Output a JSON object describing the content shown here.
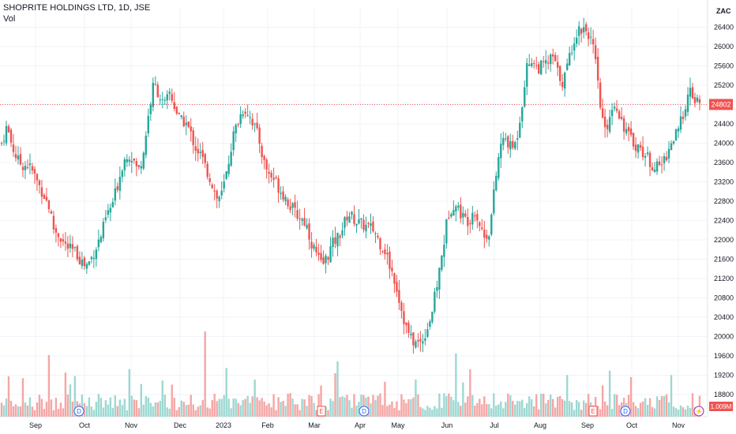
{
  "header": {
    "title": "SHOPRITE HOLDINGS LTD, 1D, JSE",
    "volume_label": "Vol"
  },
  "currency": "ZAC",
  "last_price_label": "24802",
  "volume_value_label": "1.009M",
  "colors": {
    "up": "#26a69a",
    "down": "#ef5350",
    "up_vol": "#9dd8d2",
    "down_vol": "#f5a6a4",
    "grid": "#f0f3fa",
    "last_line": "#ef5350",
    "dividend": "#2962ff",
    "earnings": "#ef5350"
  },
  "chart_data": {
    "type": "candlestick",
    "y_axis": {
      "min": 18800,
      "max": 26800,
      "ticks": [
        18800,
        19200,
        19600,
        20000,
        20400,
        20800,
        21200,
        21600,
        22000,
        22400,
        22800,
        23200,
        23600,
        24000,
        24400,
        24800,
        25200,
        25600,
        26000,
        26400
      ]
    },
    "x_axis": {
      "labels": [
        "Sep",
        "Oct",
        "Nov",
        "Dec",
        "2023",
        "Feb",
        "Mar",
        "Apr",
        "May",
        "Jun",
        "Jul",
        "Aug",
        "Sep",
        "Oct",
        "Nov"
      ]
    },
    "last_price": 24802,
    "approx_close_path": [
      [
        0,
        24000
      ],
      [
        6,
        24350
      ],
      [
        12,
        23950
      ],
      [
        18,
        23650
      ],
      [
        24,
        23550
      ],
      [
        30,
        23550
      ],
      [
        36,
        23400
      ],
      [
        42,
        23150
      ],
      [
        48,
        22950
      ],
      [
        54,
        22700
      ],
      [
        60,
        22200
      ],
      [
        66,
        22100
      ],
      [
        72,
        21900
      ],
      [
        78,
        21800
      ],
      [
        84,
        21750
      ],
      [
        90,
        21600
      ],
      [
        96,
        21450
      ],
      [
        102,
        21600
      ],
      [
        108,
        21850
      ],
      [
        114,
        22100
      ],
      [
        120,
        22500
      ],
      [
        126,
        22700
      ],
      [
        132,
        23100
      ],
      [
        138,
        23550
      ],
      [
        144,
        23800
      ],
      [
        150,
        23700
      ],
      [
        156,
        23400
      ],
      [
        162,
        23800
      ],
      [
        168,
        24600
      ],
      [
        174,
        25250
      ],
      [
        180,
        25000
      ],
      [
        186,
        24750
      ],
      [
        192,
        25050
      ],
      [
        198,
        24750
      ],
      [
        204,
        24450
      ],
      [
        210,
        24450
      ],
      [
        216,
        24200
      ],
      [
        222,
        23900
      ],
      [
        228,
        23750
      ],
      [
        234,
        23450
      ],
      [
        240,
        23200
      ],
      [
        246,
        22850
      ],
      [
        252,
        22950
      ],
      [
        258,
        23450
      ],
      [
        264,
        24100
      ],
      [
        270,
        24450
      ],
      [
        276,
        24700
      ],
      [
        282,
        24650
      ],
      [
        288,
        24400
      ],
      [
        294,
        24100
      ],
      [
        300,
        23600
      ],
      [
        306,
        23350
      ],
      [
        312,
        23250
      ],
      [
        318,
        23050
      ],
      [
        324,
        22900
      ],
      [
        330,
        22700
      ],
      [
        336,
        22550
      ],
      [
        342,
        22450
      ],
      [
        348,
        22350
      ],
      [
        354,
        21950
      ],
      [
        360,
        21700
      ],
      [
        366,
        21450
      ],
      [
        372,
        21650
      ],
      [
        378,
        21900
      ],
      [
        384,
        22050
      ],
      [
        390,
        22250
      ],
      [
        396,
        22550
      ],
      [
        402,
        22450
      ],
      [
        408,
        22350
      ],
      [
        414,
        22300
      ],
      [
        420,
        22250
      ],
      [
        426,
        22200
      ],
      [
        432,
        21950
      ],
      [
        438,
        21800
      ],
      [
        444,
        21450
      ],
      [
        450,
        21150
      ],
      [
        456,
        20650
      ],
      [
        462,
        20200
      ],
      [
        468,
        19950
      ],
      [
        474,
        19850
      ],
      [
        480,
        19900
      ],
      [
        486,
        20150
      ],
      [
        492,
        20500
      ],
      [
        498,
        21100
      ],
      [
        504,
        21750
      ],
      [
        510,
        22500
      ],
      [
        516,
        22750
      ],
      [
        522,
        22650
      ],
      [
        528,
        22450
      ],
      [
        534,
        22400
      ],
      [
        540,
        22650
      ],
      [
        546,
        22350
      ],
      [
        552,
        22050
      ],
      [
        558,
        22200
      ],
      [
        564,
        23150
      ],
      [
        570,
        23950
      ],
      [
        576,
        24100
      ],
      [
        582,
        23900
      ],
      [
        588,
        24000
      ],
      [
        594,
        24700
      ],
      [
        600,
        25550
      ],
      [
        606,
        25750
      ],
      [
        612,
        25550
      ],
      [
        618,
        25600
      ],
      [
        624,
        25650
      ],
      [
        630,
        25800
      ],
      [
        636,
        25450
      ],
      [
        642,
        25250
      ],
      [
        648,
        25700
      ],
      [
        654,
        26150
      ],
      [
        660,
        26350
      ],
      [
        666,
        26400
      ],
      [
        672,
        26250
      ],
      [
        678,
        25800
      ],
      [
        684,
        24800
      ],
      [
        690,
        24200
      ],
      [
        696,
        24650
      ],
      [
        702,
        24850
      ],
      [
        708,
        24500
      ],
      [
        714,
        24250
      ],
      [
        720,
        24050
      ],
      [
        726,
        23950
      ],
      [
        732,
        23850
      ],
      [
        738,
        23700
      ],
      [
        744,
        23550
      ],
      [
        750,
        23500
      ],
      [
        756,
        23600
      ],
      [
        762,
        23850
      ],
      [
        768,
        24100
      ],
      [
        774,
        24250
      ],
      [
        780,
        24700
      ],
      [
        786,
        25050
      ],
      [
        792,
        24900
      ],
      [
        798,
        24802
      ]
    ],
    "date_span": [
      "Sep",
      "Nov"
    ],
    "markers": [
      {
        "type": "dividend",
        "symbol": "D",
        "label": "Oct"
      },
      {
        "type": "earnings",
        "symbol": "E",
        "label": "Mar"
      },
      {
        "type": "dividend",
        "symbol": "D",
        "label": "Apr"
      },
      {
        "type": "earnings",
        "symbol": "E",
        "label": "Sep"
      },
      {
        "type": "dividend",
        "symbol": "D",
        "label": "Oct"
      },
      {
        "type": "split",
        "symbol": "⚡",
        "label": "Nov"
      }
    ]
  }
}
